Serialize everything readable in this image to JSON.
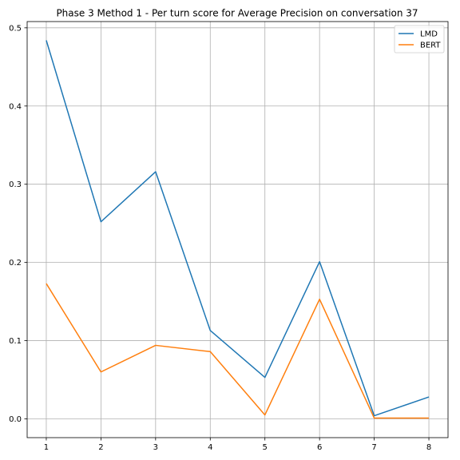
{
  "chart_data": {
    "type": "line",
    "title": "Phase 3 Method 1 - Per turn score for Average Precision on conversation 37",
    "xlabel": "",
    "ylabel": "",
    "x": [
      1,
      2,
      3,
      4,
      5,
      6,
      7,
      8
    ],
    "x_ticks": [
      1,
      2,
      3,
      4,
      5,
      6,
      7,
      8
    ],
    "y_ticks": [
      0.0,
      0.1,
      0.2,
      0.3,
      0.4,
      0.5
    ],
    "y_tick_labels": [
      "0.0",
      "0.1",
      "0.2",
      "0.3",
      "0.4",
      "0.5"
    ],
    "xlim": [
      0.65,
      8.35
    ],
    "ylim": [
      -0.024,
      0.508
    ],
    "grid": true,
    "legend_position": "top-right",
    "series": [
      {
        "name": "LMD",
        "color": "#1f77b4",
        "values": [
          0.484,
          0.252,
          0.316,
          0.113,
          0.053,
          0.201,
          0.004,
          0.028
        ]
      },
      {
        "name": "BERT",
        "color": "#ff7f0e",
        "values": [
          0.173,
          0.06,
          0.094,
          0.086,
          0.005,
          0.153,
          0.001,
          0.001
        ]
      }
    ]
  }
}
